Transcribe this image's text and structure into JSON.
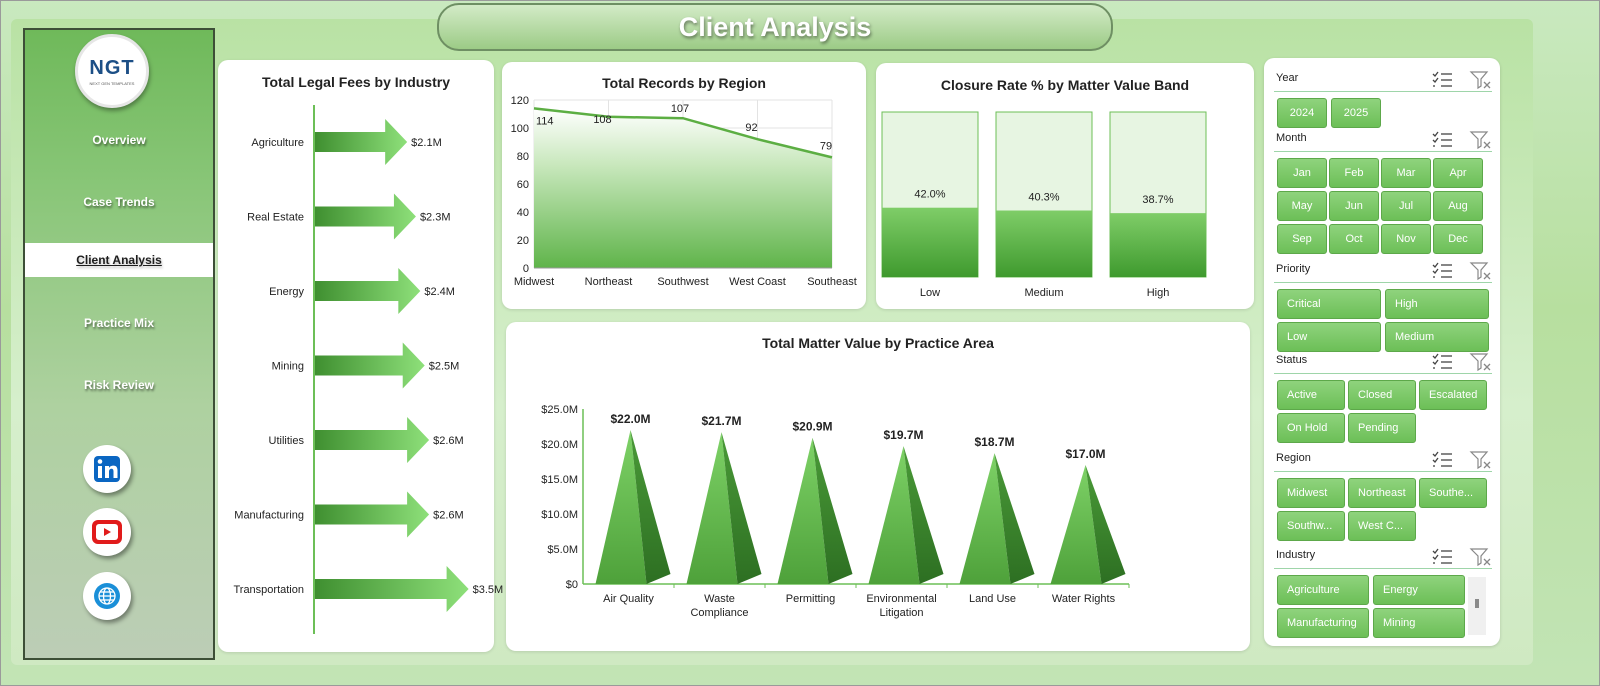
{
  "header": {
    "title": "Client Analysis"
  },
  "sidebar": {
    "logo_text": "NGT",
    "logo_subtext": "NEXT GEN TEMPLATES",
    "items": [
      {
        "label": "Overview",
        "active": false
      },
      {
        "label": "Case Trends",
        "active": false
      },
      {
        "label": "Client Analysis",
        "active": true
      },
      {
        "label": "Practice Mix",
        "active": false
      },
      {
        "label": "Risk Review",
        "active": false
      }
    ],
    "social": [
      "linkedin-icon",
      "youtube-icon",
      "globe-icon"
    ],
    "colors": {
      "linkedin": "#0a66c2",
      "youtube": "#e11b1b",
      "globe": "#1a8fd8"
    }
  },
  "charts": {
    "legal_fees": {
      "title": "Total Legal Fees by Industry"
    },
    "records": {
      "title": "Total Records by Region"
    },
    "closure": {
      "title": "Closure  Rate % by Matter Value Band"
    },
    "matter": {
      "title": "Total Matter Value by Practice Area"
    }
  },
  "chart_data": [
    {
      "type": "bar",
      "title": "Total Legal Fees by Industry",
      "categories": [
        "Agriculture",
        "Real Estate",
        "Energy",
        "Mining",
        "Utilities",
        "Manufacturing",
        "Transportation"
      ],
      "values": [
        2.1,
        2.3,
        2.4,
        2.5,
        2.6,
        2.6,
        3.5
      ],
      "data_labels": [
        "$2.1M",
        "$2.3M",
        "$2.4M",
        "$2.5M",
        "$2.6M",
        "$2.6M",
        "$3.5M"
      ],
      "unit": "$M",
      "orientation": "horizontal"
    },
    {
      "type": "area",
      "title": "Total Records by Region",
      "categories": [
        "Midwest",
        "Northeast",
        "Southwest",
        "West Coast",
        "Southeast"
      ],
      "values": [
        114,
        108,
        107,
        92,
        79
      ],
      "ylim": [
        0,
        120
      ],
      "yticks": [
        "0",
        "20",
        "40",
        "60",
        "80",
        "100",
        "120"
      ],
      "grid": true
    },
    {
      "type": "bar",
      "title": "Closure  Rate % by Matter Value Band",
      "categories": [
        "Low",
        "Medium",
        "High"
      ],
      "values": [
        42.0,
        40.3,
        38.7
      ],
      "data_labels": [
        "42.0%",
        "40.3%",
        "38.7%"
      ],
      "ylim": [
        0,
        100
      ]
    },
    {
      "type": "bar",
      "title": "Total Matter Value by Practice Area",
      "categories": [
        "Air Quality",
        "Waste Compliance",
        "Permitting",
        "Environmental Litigation",
        "Land Use",
        "Water Rights"
      ],
      "category_lines": [
        [
          "Air Quality"
        ],
        [
          "Waste",
          "Compliance"
        ],
        [
          "Permitting"
        ],
        [
          "Environmental",
          "Litigation"
        ],
        [
          "Land Use"
        ],
        [
          "Water Rights"
        ]
      ],
      "values": [
        22.0,
        21.7,
        20.9,
        19.7,
        18.7,
        17.0
      ],
      "data_labels": [
        "$22.0M",
        "$21.7M",
        "$20.9M",
        "$19.7M",
        "$18.7M",
        "$17.0M"
      ],
      "ylim": [
        0,
        25
      ],
      "yticks": [
        "$0",
        "$5.0M",
        "$10.0M",
        "$15.0M",
        "$20.0M",
        "$25.0M"
      ],
      "shape": "pyramid"
    }
  ],
  "slicers": [
    {
      "title": "Year",
      "items": [
        "2024",
        "2025"
      ]
    },
    {
      "title": "Month",
      "items": [
        "Jan",
        "Feb",
        "Mar",
        "Apr",
        "May",
        "Jun",
        "Jul",
        "Aug",
        "Sep",
        "Oct",
        "Nov",
        "Dec"
      ]
    },
    {
      "title": "Priority",
      "items": [
        "Critical",
        "High",
        "Low",
        "Medium"
      ]
    },
    {
      "title": "Status",
      "items": [
        "Active",
        "Closed",
        "Escalated",
        "On Hold",
        "Pending"
      ]
    },
    {
      "title": "Region",
      "items": [
        "Midwest",
        "Northeast",
        "Southe...",
        "Southw...",
        "West C..."
      ]
    },
    {
      "title": "Industry",
      "items": [
        "Agriculture",
        "Energy",
        "Manufacturing",
        "Mining"
      ]
    }
  ],
  "colors": {
    "accent": "#6cbf57",
    "accent_dark": "#3e8a2e",
    "line": "#5cae43"
  }
}
